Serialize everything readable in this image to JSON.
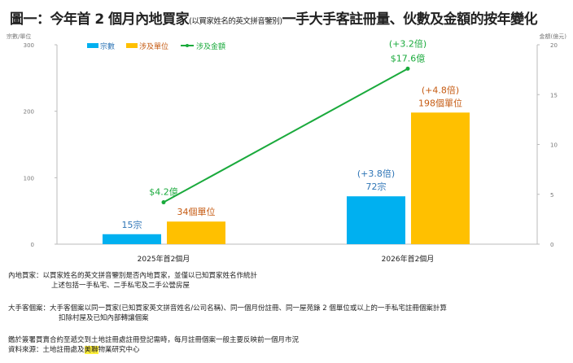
{
  "title": {
    "main_a": "圖一：今年首 2 個月內地買家",
    "small": "(以買家姓名的英文拼音鑒別)",
    "main_b": "一手大手客註冊量、伙數及金額的按年變化"
  },
  "chart_data": {
    "type": "bar+line",
    "categories": [
      "2025年首2個月",
      "2026年首2個月"
    ],
    "y_left": {
      "label": "宗數/單位",
      "ticks": [
        0,
        100,
        200,
        300
      ],
      "range": [
        0,
        300
      ]
    },
    "y_right": {
      "label": "金額(億元)",
      "ticks": [
        0,
        5,
        10,
        15,
        20
      ],
      "range": [
        0,
        20
      ]
    },
    "legend_position": "top-left",
    "grid": false,
    "series": [
      {
        "name": "宗數",
        "type": "bar",
        "axis": "left",
        "color": "#00b0f0",
        "values": [
          15,
          72
        ],
        "data_labels": [
          "15宗",
          "72宗"
        ],
        "change_labels": [
          "",
          "(+3.8倍)"
        ]
      },
      {
        "name": "涉及單位",
        "type": "bar",
        "axis": "left",
        "color": "#ffc000",
        "values": [
          34,
          198
        ],
        "data_labels": [
          "34個單位",
          "198個單位"
        ],
        "change_labels": [
          "",
          "(+4.8倍)"
        ]
      },
      {
        "name": "涉及金額",
        "type": "line",
        "axis": "right",
        "color": "#1aaa3c",
        "values": [
          4.2,
          17.6
        ],
        "data_labels": [
          "$4.2億",
          "$17.6億"
        ],
        "change_labels": [
          "",
          "(+3.2倍)"
        ]
      }
    ]
  },
  "colors": {
    "bar_label_orange": "#c55a11",
    "bar_label_blue": "#2e75b6"
  },
  "notes": {
    "l1a": "內地買家：以買家姓名的英文拼音鑒別是否內地買家，並僅以已知買家姓名作統計",
    "l1b": "上述包括一手私宅、二手私宅及二手公營房屋",
    "l2a": "大手客個案：大手客個案以同一買家(已知買家英文拼音姓名/公司名稱)、同一個月份註冊、同一屋苑錄 2 個單位或以上的一手私宅註冊個案計算",
    "l2b": "扣除村屋及已知內部轉讓個案",
    "l3": "鑑於簽署買賣合約至遞交到土地註冊處註冊登記需時，每月註冊個案一般主要反映前一個月市況",
    "l4a": "資料來源：土地註冊處及",
    "l4b": "美聯",
    "l4c": "物業研究中心"
  }
}
